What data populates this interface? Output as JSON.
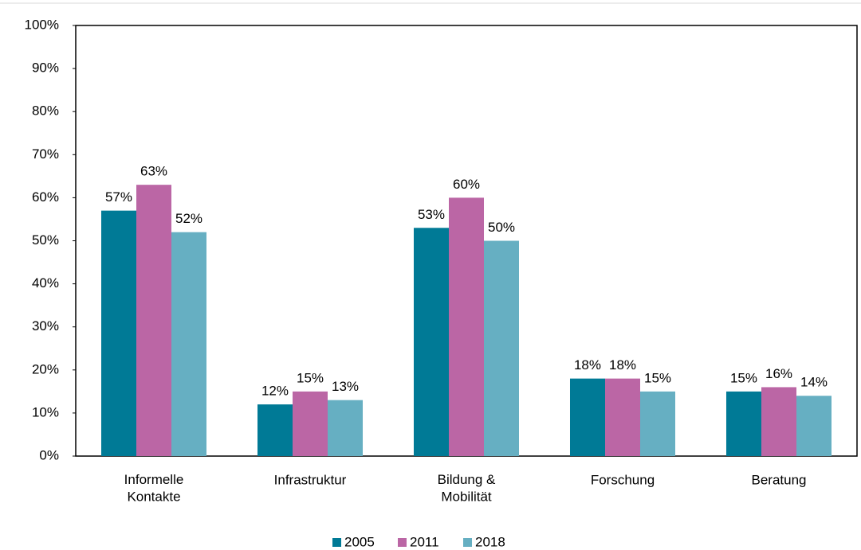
{
  "chart_data": {
    "type": "bar",
    "categories": [
      "Informelle\nKontakte",
      "Infrastruktur",
      "Bildung &\nMobilität",
      "Forschung",
      "Beratung"
    ],
    "series": [
      {
        "name": "2005",
        "color": "#007a96",
        "values": [
          57,
          12,
          53,
          18,
          15
        ],
        "value_labels": [
          "57%",
          "12%",
          "53%",
          "18%",
          "15%"
        ]
      },
      {
        "name": "2011",
        "color": "#bb66a5",
        "values": [
          63,
          15,
          60,
          18,
          16
        ],
        "value_labels": [
          "63%",
          "15%",
          "60%",
          "18%",
          "16%"
        ]
      },
      {
        "name": "2018",
        "color": "#66afc2",
        "values": [
          52,
          13,
          50,
          15,
          14
        ],
        "value_labels": [
          "52%",
          "13%",
          "50%",
          "15%",
          "14%"
        ]
      }
    ],
    "ylim": [
      0,
      100
    ],
    "yticks": [
      {
        "value": 0,
        "label": "0%"
      },
      {
        "value": 10,
        "label": "10%"
      },
      {
        "value": 20,
        "label": "20%"
      },
      {
        "value": 30,
        "label": "30%"
      },
      {
        "value": 40,
        "label": "40%"
      },
      {
        "value": 50,
        "label": "50%"
      },
      {
        "value": 60,
        "label": "60%"
      },
      {
        "value": 70,
        "label": "70%"
      },
      {
        "value": 80,
        "label": "80%"
      },
      {
        "value": 90,
        "label": "90%"
      },
      {
        "value": 100,
        "label": "100%"
      }
    ],
    "grid": false,
    "legend": "bottom"
  }
}
